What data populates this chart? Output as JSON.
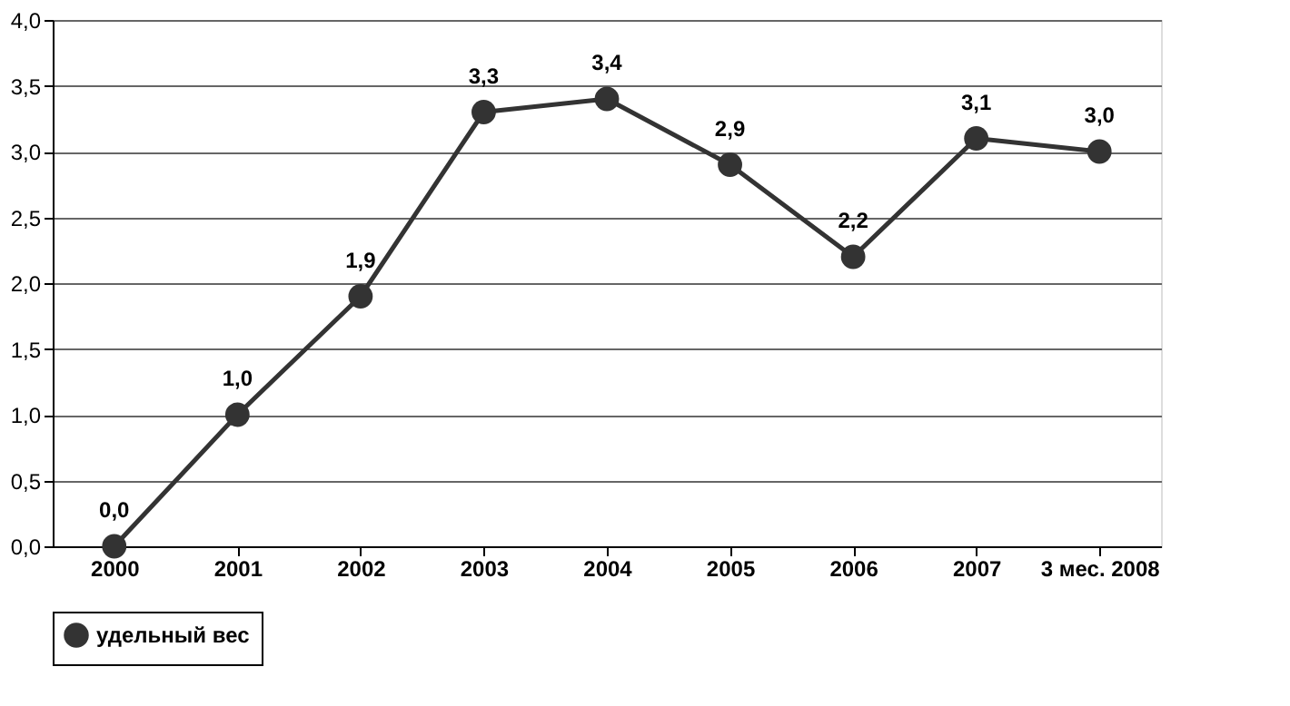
{
  "chart_data": {
    "type": "line",
    "categories": [
      "2000",
      "2001",
      "2002",
      "2003",
      "2004",
      "2005",
      "2006",
      "2007",
      "3 мес. 2008"
    ],
    "series": [
      {
        "name": "удельный вес",
        "color": "#333333",
        "values": [
          0.0,
          1.0,
          1.9,
          3.3,
          3.4,
          2.9,
          2.2,
          3.1,
          3.0
        ],
        "value_labels": [
          "0,0",
          "1,0",
          "1,9",
          "3,3",
          "3,4",
          "2,9",
          "2,2",
          "3,1",
          "3,0"
        ]
      }
    ],
    "ylim": [
      0,
      4
    ],
    "yticks": [
      {
        "value": 0,
        "label": "0,0"
      },
      {
        "value": 0.5,
        "label": "0,5"
      },
      {
        "value": 1,
        "label": "1,0"
      },
      {
        "value": 1.5,
        "label": "1,5"
      },
      {
        "value": 2,
        "label": "2,0"
      },
      {
        "value": 2.5,
        "label": "2,5"
      },
      {
        "value": 3,
        "label": "3,0"
      },
      {
        "value": 3.5,
        "label": "3,5"
      },
      {
        "value": 4,
        "label": "4,0"
      }
    ],
    "grid": "y",
    "legend": "bottom",
    "marker": "circle",
    "line_style": "solid"
  }
}
